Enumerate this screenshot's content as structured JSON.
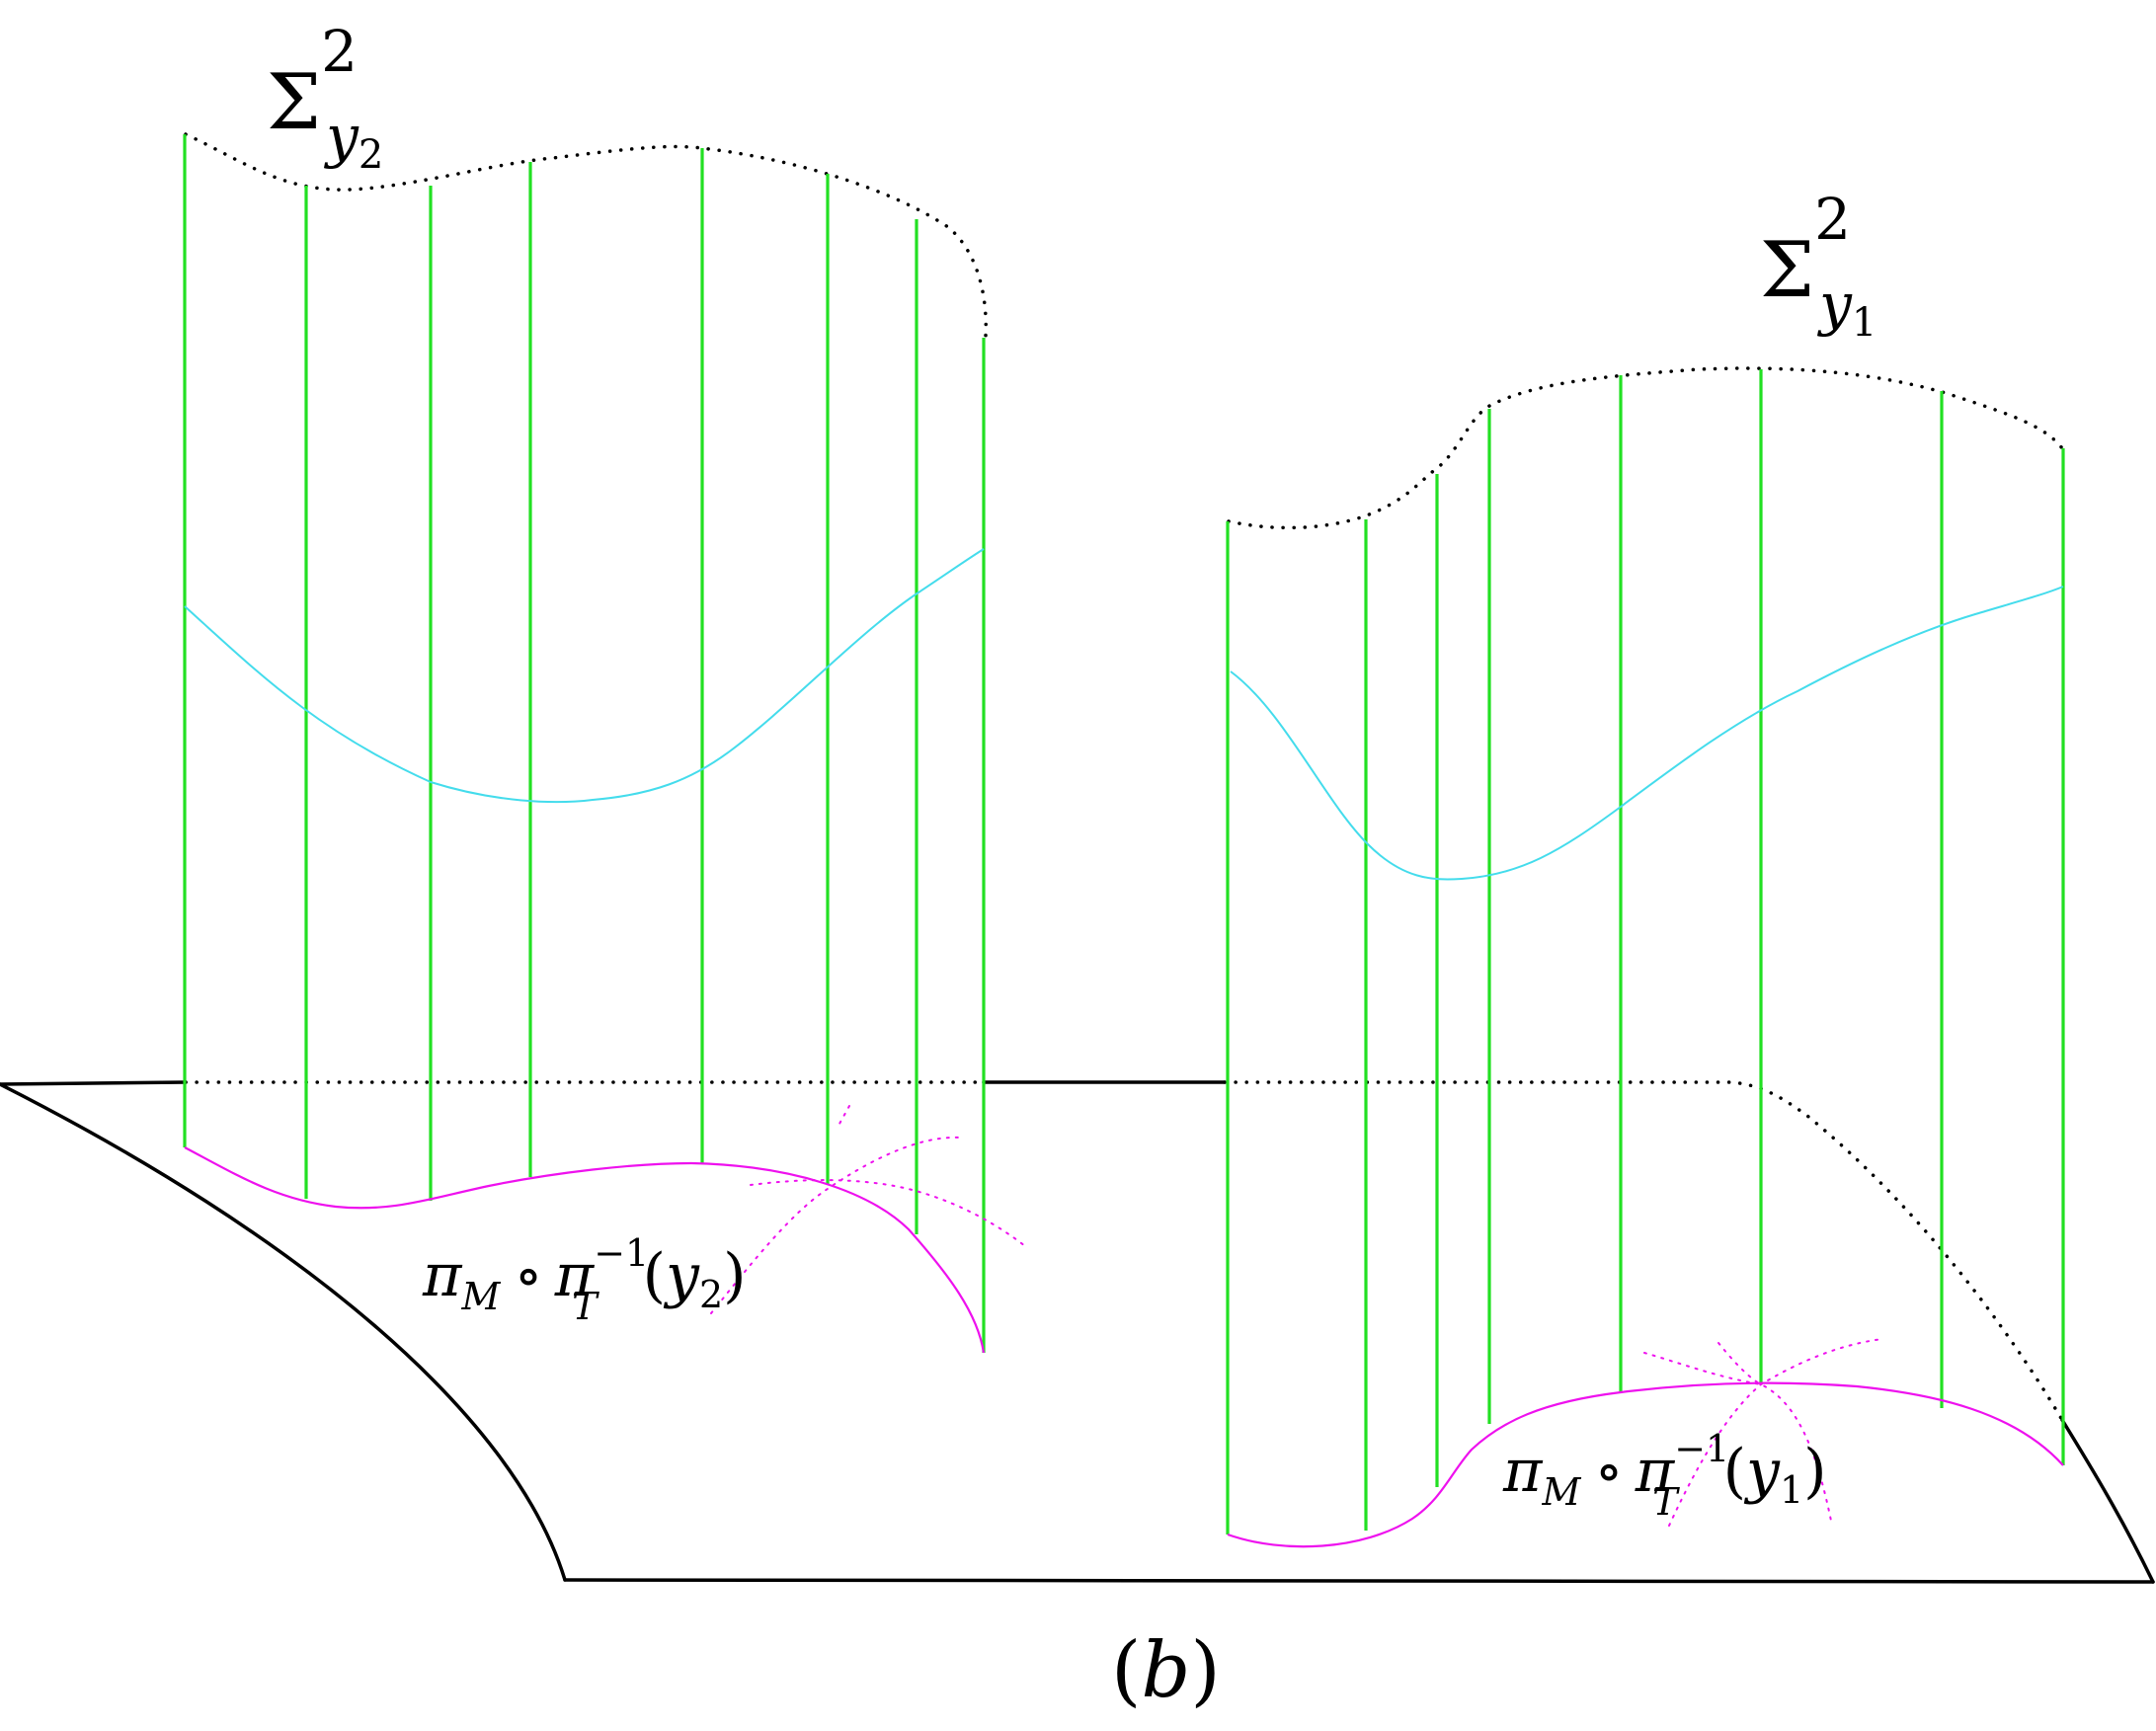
{
  "colors": {
    "fiber": "#22e022",
    "section": "#44dcec",
    "base_curve": "#ee11ee",
    "outline": "#000000"
  },
  "labels": {
    "sigma_y2": {
      "symbol": "Σ",
      "sup": "2",
      "sub_var": "y",
      "sub_idx": "2"
    },
    "sigma_y1": {
      "symbol": "Σ",
      "sup": "2",
      "sub_var": "y",
      "sub_idx": "1"
    },
    "proj_y2": {
      "pi": "π",
      "pi_sub": "M",
      "circ": "∘",
      "pi2": "π",
      "pi2_sub": "T",
      "pi2_sup": "−1",
      "open": "(",
      "var": "y",
      "var_sub": "2",
      "close": ")"
    },
    "proj_y1": {
      "pi": "π",
      "pi_sub": "M",
      "circ": "∘",
      "pi2": "π",
      "pi2_sub": "T",
      "pi2_sup": "−1",
      "open": "(",
      "var": "y",
      "var_sub": "1",
      "close": ")"
    },
    "caption": {
      "open": "(",
      "letter": "b",
      "close": ")"
    }
  }
}
